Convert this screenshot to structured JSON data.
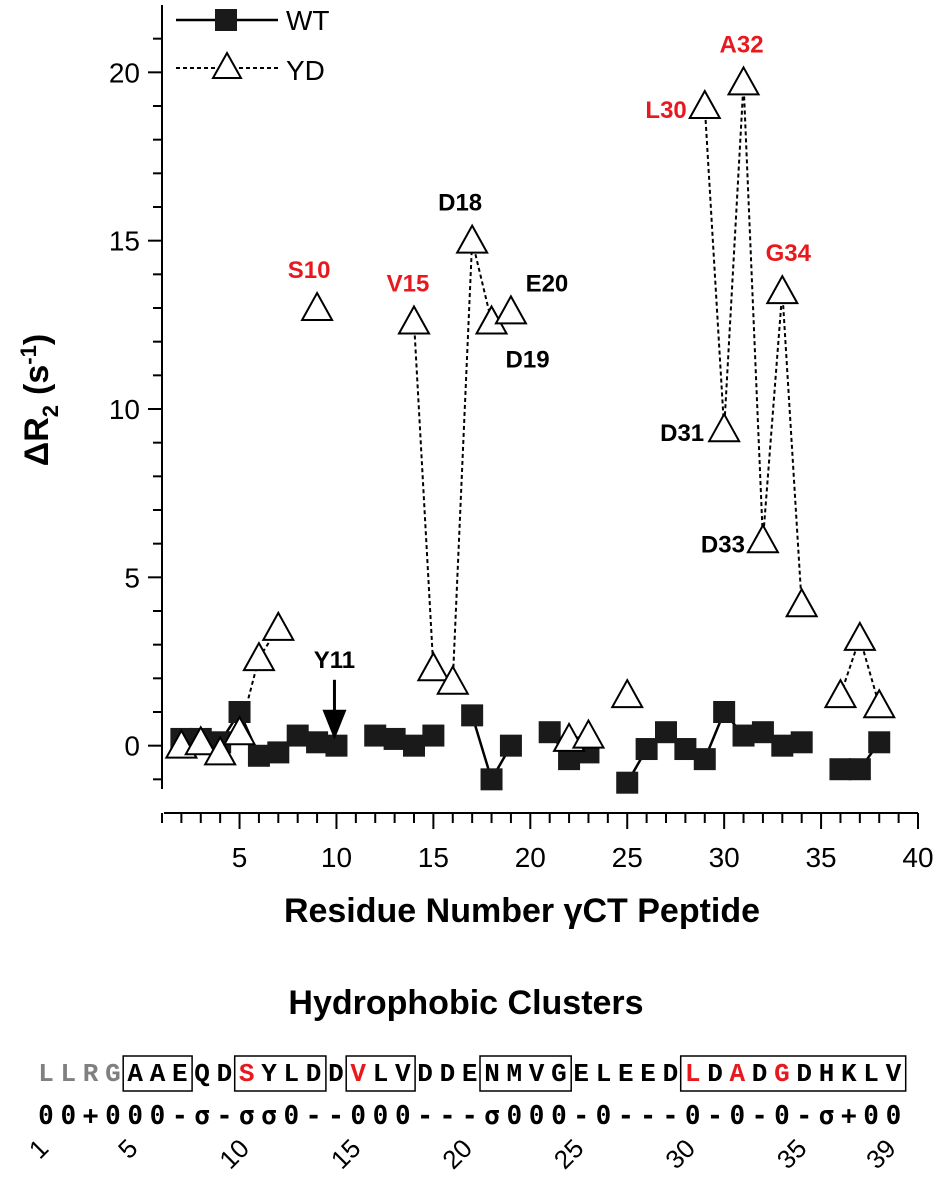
{
  "chart_data": {
    "type": "line",
    "xlabel": "Residue Number γCT Peptide",
    "ylabel": "ΔR",
    "ylabel_sub": "2",
    "ylabel_unit_open": "(s",
    "ylabel_unit_sup": "-1",
    "ylabel_unit_close": ")",
    "xlim": [
      1,
      40
    ],
    "ylim": [
      -2,
      22
    ],
    "xticks": [
      "5",
      "10",
      "15",
      "20",
      "25",
      "30",
      "35",
      "40"
    ],
    "yticks": [
      "0",
      "5",
      "10",
      "15",
      "20"
    ],
    "legend_position": "top-left",
    "series": [
      {
        "name": "WT",
        "marker": "filled-square",
        "line": "solid",
        "x": [
          2,
          3,
          4,
          5,
          6,
          7,
          8,
          9,
          10,
          12,
          13,
          14,
          15,
          17,
          18,
          19,
          21,
          22,
          23,
          25,
          26,
          27,
          28,
          29,
          30,
          31,
          32,
          33,
          34,
          36,
          37,
          38
        ],
        "y": [
          0.2,
          0.2,
          0.1,
          1.0,
          -0.3,
          -0.2,
          0.3,
          0.1,
          0.0,
          0.3,
          0.2,
          0.0,
          0.3,
          0.9,
          -1.0,
          0.0,
          0.4,
          -0.4,
          -0.2,
          -1.1,
          -0.1,
          0.4,
          -0.1,
          -0.4,
          1.0,
          0.3,
          0.4,
          0.0,
          0.1,
          -0.7,
          -0.7,
          0.1
        ]
      },
      {
        "name": "YD",
        "marker": "open-triangle",
        "line": "dashed",
        "x": [
          2,
          3,
          4,
          5,
          6,
          7,
          9,
          14,
          15,
          16,
          17,
          18,
          19,
          22,
          23,
          25,
          29,
          30,
          31,
          32,
          33,
          34,
          36,
          37,
          38
        ],
        "y": [
          0.0,
          0.1,
          -0.2,
          0.4,
          2.6,
          3.5,
          13.0,
          12.6,
          2.3,
          1.9,
          15.0,
          12.6,
          12.9,
          0.2,
          0.3,
          1.5,
          19.0,
          9.4,
          19.7,
          6.1,
          13.5,
          4.2,
          1.5,
          3.2,
          1.2
        ]
      }
    ],
    "annotations": [
      {
        "text": "S10",
        "x": 9,
        "y": 13.0,
        "color": "#e8191e"
      },
      {
        "text": "V15",
        "x": 14,
        "y": 12.6,
        "color": "#e8191e"
      },
      {
        "text": "D18",
        "x": 17,
        "y": 15.0,
        "color": "#000000"
      },
      {
        "text": "D19",
        "x": 18,
        "y": 12.6,
        "color": "#000000"
      },
      {
        "text": "E20",
        "x": 19,
        "y": 12.9,
        "color": "#000000"
      },
      {
        "text": "L30",
        "x": 29,
        "y": 19.0,
        "color": "#e8191e"
      },
      {
        "text": "A32",
        "x": 31,
        "y": 19.7,
        "color": "#e8191e"
      },
      {
        "text": "D31",
        "x": 30,
        "y": 9.4,
        "color": "#000000"
      },
      {
        "text": "G34",
        "x": 33,
        "y": 13.5,
        "color": "#e8191e"
      },
      {
        "text": "D33",
        "x": 32,
        "y": 6.1,
        "color": "#000000"
      },
      {
        "text": "Y11",
        "x": 10,
        "y": 1.6,
        "color": "#000000",
        "arrow": true
      }
    ]
  },
  "hydrophobic": {
    "title": "Hydrophobic Clusters",
    "sequence": "LLRGAAEQDSYLDDVLVDDENMVGELEEDLDADGDHKLV",
    "gray_positions": [
      0,
      1,
      2,
      3
    ],
    "red_positions": [
      9,
      14,
      29,
      31,
      33
    ],
    "boxes": [
      [
        4,
        6
      ],
      [
        9,
        12
      ],
      [
        14,
        16
      ],
      [
        20,
        23
      ],
      [
        29,
        38
      ]
    ],
    "class_string": "00+000-σ-σσ0--000---σ000-0---0-0-0-σ+00",
    "index_labels": [
      "1",
      "5",
      "10",
      "15",
      "20",
      "25",
      "30",
      "35",
      "39"
    ]
  },
  "colors": {
    "highlight": "#e8191e",
    "gray": "#808080",
    "ink": "#000000"
  }
}
